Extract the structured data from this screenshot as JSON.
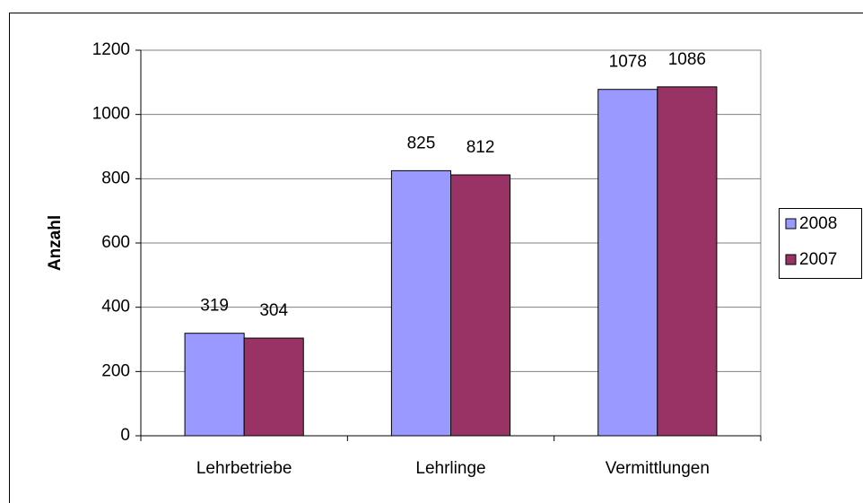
{
  "chart_data": {
    "type": "bar",
    "y_label": "Anzahl",
    "categories": [
      "Lehrbetriebe",
      "Lehrlinge",
      "Vermittlungen"
    ],
    "series": [
      {
        "name": "2008",
        "color": "#9999ff",
        "values": [
          319,
          825,
          1078
        ]
      },
      {
        "name": "2007",
        "color": "#993366",
        "values": [
          304,
          812,
          1086
        ]
      }
    ],
    "ylim": [
      0,
      1200
    ],
    "yticks": [
      0,
      200,
      400,
      600,
      800,
      1000,
      1200
    ],
    "grid": true,
    "legend": "right"
  }
}
